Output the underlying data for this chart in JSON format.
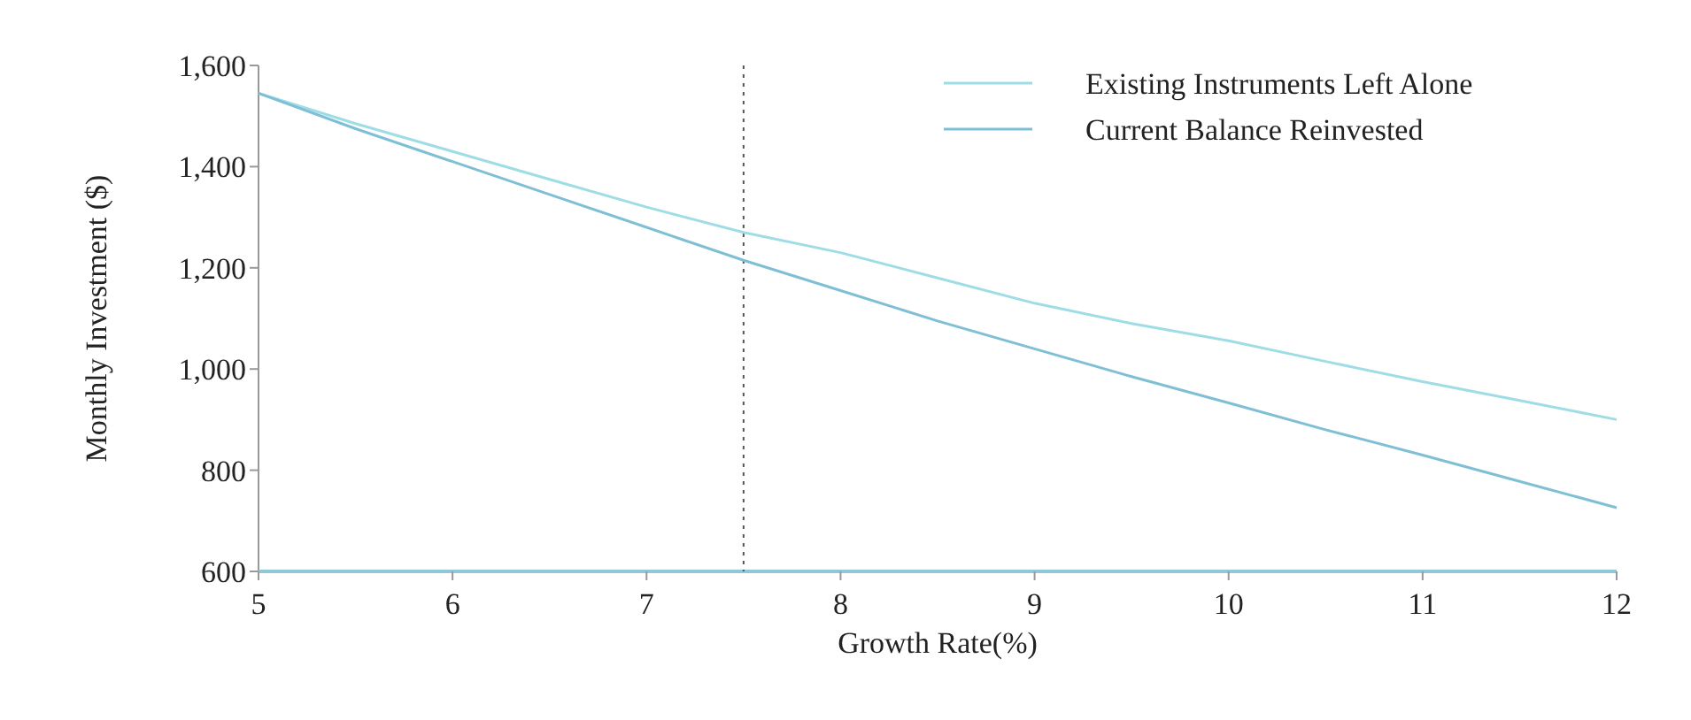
{
  "chart_data": {
    "type": "line",
    "xlabel": "Growth Rate(%)",
    "ylabel": "Monthly Investment ($)",
    "x": [
      5,
      5.5,
      6,
      6.5,
      7,
      7.5,
      8,
      8.5,
      9,
      9.5,
      10,
      10.5,
      11,
      11.5,
      12
    ],
    "series": [
      {
        "name": "Existing Instruments Left Alone",
        "color": "#9fdde6",
        "values": [
          1545,
          1485,
          1430,
          1375,
          1320,
          1270,
          1230,
          1180,
          1130,
          1090,
          1056,
          1015,
          975,
          938,
          900
        ]
      },
      {
        "name": "Current Balance Reinvested",
        "color": "#7fbfd6",
        "values": [
          1545,
          1475,
          1410,
          1345,
          1280,
          1215,
          1155,
          1095,
          1040,
          985,
          933,
          880,
          830,
          778,
          726
        ]
      }
    ],
    "xlim": [
      5,
      12
    ],
    "xticks": [
      5,
      6,
      7,
      8,
      9,
      10,
      11,
      12
    ],
    "ylim": [
      600,
      1600
    ],
    "yticks": [
      {
        "value": 600,
        "label": "600"
      },
      {
        "value": 800,
        "label": "800"
      },
      {
        "value": 1000,
        "label": "1,000"
      },
      {
        "value": 1200,
        "label": "1,200"
      },
      {
        "value": 1400,
        "label": "1,400"
      },
      {
        "value": 1600,
        "label": "1,600"
      }
    ],
    "ref_lines": [
      {
        "axis": "x",
        "value": 7.5,
        "color": "#555555",
        "line_style": "dotted"
      }
    ],
    "legend": "top right",
    "grid": false
  }
}
